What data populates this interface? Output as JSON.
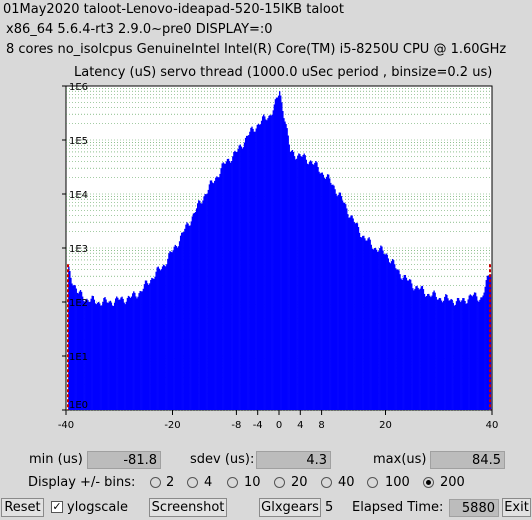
{
  "header": {
    "line1": "01May2020 taloot-Lenovo-ideapad-520-15IKB taloot",
    "line2": "x86_64  5.6.4-rt3  2.9.0~pre0  DISPLAY=:0",
    "line3": "8 cores  no_isolcpus   GenuineIntel  Intel(R) Core(TM) i5-8250U CPU @ 1.60GHz"
  },
  "chart_data": {
    "type": "bar",
    "title": "Latency (uS) servo thread (1000.0 uSec period , binsize=0.2 us)",
    "xlabel": "",
    "ylabel": "",
    "xlim": [
      -40,
      40
    ],
    "ylim": [
      1,
      1000000
    ],
    "log_scale_y": true,
    "grid": true,
    "x_tick_labels": [
      "-40",
      "-20",
      "-8",
      "-4",
      "0",
      "4",
      "8",
      "20",
      "40"
    ],
    "y_tick_labels": [
      "1E0",
      "1E1",
      "1E2",
      "1E3",
      "1E4",
      "1E5",
      "1E6"
    ],
    "bar_color": "#0000ff",
    "marker_color": "#cc0000",
    "x": [
      -40,
      -38,
      -36,
      -34,
      -32,
      -30,
      -28,
      -26,
      -24,
      -22,
      -20,
      -18,
      -16,
      -14,
      -12,
      -10,
      -8,
      -6,
      -4,
      -2,
      -1,
      0,
      1,
      2,
      4,
      6,
      8,
      10,
      12,
      14,
      16,
      18,
      20,
      22,
      24,
      26,
      28,
      30,
      32,
      34,
      36,
      38,
      40
    ],
    "values": [
      500,
      150,
      110,
      100,
      100,
      110,
      120,
      160,
      280,
      450,
      900,
      2000,
      4500,
      10000,
      20000,
      40000,
      60000,
      120000,
      200000,
      280000,
      400000,
      800000,
      250000,
      60000,
      50000,
      40000,
      25000,
      15000,
      7000,
      3000,
      1500,
      1000,
      800,
      400,
      250,
      180,
      140,
      120,
      110,
      100,
      130,
      120,
      500
    ]
  },
  "stats": {
    "min_label": "min (us)",
    "min_value": "-81.8",
    "sdev_label": "sdev (us):",
    "sdev_value": "4.3",
    "max_label": "max(us)",
    "max_value": "84.5"
  },
  "bins": {
    "label": "Display +/- bins:",
    "options": [
      "2",
      "4",
      "10",
      "20",
      "40",
      "100",
      "200"
    ],
    "selected": "200"
  },
  "controls": {
    "reset_label": "Reset",
    "ylogscale_label": "ylogscale",
    "ylogscale_checked": true,
    "screenshot_label": "Screenshot",
    "glxgears_label": "Glxgears",
    "glxgears_value": "5",
    "elapsed_label": "Elapsed Time:",
    "elapsed_value": "5880",
    "exit_label": "Exit"
  }
}
